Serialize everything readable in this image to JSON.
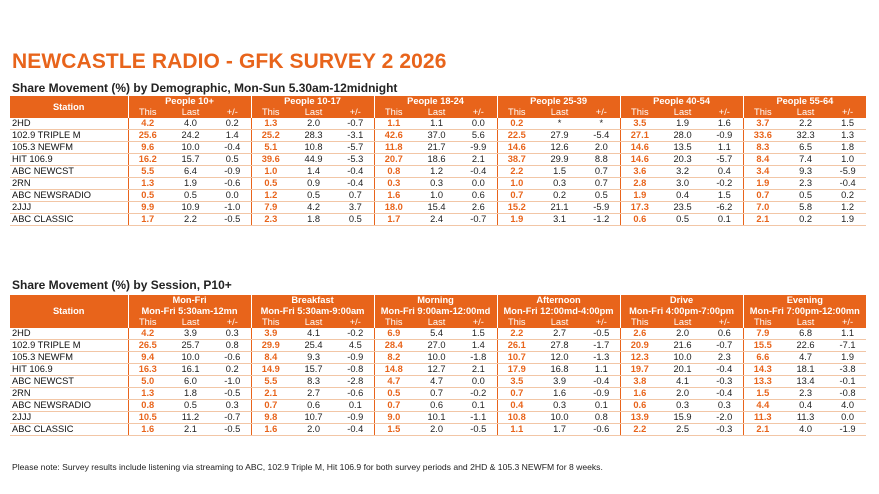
{
  "title": "NEWCASTLE RADIO - GFK SURVEY 2 2026",
  "demo": {
    "heading": "Share Movement (%) by Demographic, Mon-Sun 5.30am-12midnight",
    "station_label": "Station",
    "groups": [
      "People 10+",
      "People 10-17",
      "People 18-24",
      "People 25-39",
      "People 40-54",
      "People 55-64"
    ],
    "col_labels": [
      "This",
      "Last",
      "+/-"
    ],
    "rows": [
      {
        "name": "2HD",
        "values": [
          [
            "4.2",
            "4.0",
            "0.2"
          ],
          [
            "1.3",
            "2.0",
            "-0.7"
          ],
          [
            "1.1",
            "1.1",
            "0.0"
          ],
          [
            "0.2",
            "*",
            "*"
          ],
          [
            "3.5",
            "1.9",
            "1.6"
          ],
          [
            "3.7",
            "2.2",
            "1.5"
          ]
        ]
      },
      {
        "name": "102.9 TRIPLE M",
        "values": [
          [
            "25.6",
            "24.2",
            "1.4"
          ],
          [
            "25.2",
            "28.3",
            "-3.1"
          ],
          [
            "42.6",
            "37.0",
            "5.6"
          ],
          [
            "22.5",
            "27.9",
            "-5.4"
          ],
          [
            "27.1",
            "28.0",
            "-0.9"
          ],
          [
            "33.6",
            "32.3",
            "1.3"
          ]
        ]
      },
      {
        "name": "105.3 NEWFM",
        "values": [
          [
            "9.6",
            "10.0",
            "-0.4"
          ],
          [
            "5.1",
            "10.8",
            "-5.7"
          ],
          [
            "11.8",
            "21.7",
            "-9.9"
          ],
          [
            "14.6",
            "12.6",
            "2.0"
          ],
          [
            "14.6",
            "13.5",
            "1.1"
          ],
          [
            "8.3",
            "6.5",
            "1.8"
          ]
        ]
      },
      {
        "name": "HIT 106.9",
        "values": [
          [
            "16.2",
            "15.7",
            "0.5"
          ],
          [
            "39.6",
            "44.9",
            "-5.3"
          ],
          [
            "20.7",
            "18.6",
            "2.1"
          ],
          [
            "38.7",
            "29.9",
            "8.8"
          ],
          [
            "14.6",
            "20.3",
            "-5.7"
          ],
          [
            "8.4",
            "7.4",
            "1.0"
          ]
        ]
      },
      {
        "name": "ABC NEWCST",
        "values": [
          [
            "5.5",
            "6.4",
            "-0.9"
          ],
          [
            "1.0",
            "1.4",
            "-0.4"
          ],
          [
            "0.8",
            "1.2",
            "-0.4"
          ],
          [
            "2.2",
            "1.5",
            "0.7"
          ],
          [
            "3.6",
            "3.2",
            "0.4"
          ],
          [
            "3.4",
            "9.3",
            "-5.9"
          ]
        ]
      },
      {
        "name": "2RN",
        "values": [
          [
            "1.3",
            "1.9",
            "-0.6"
          ],
          [
            "0.5",
            "0.9",
            "-0.4"
          ],
          [
            "0.3",
            "0.3",
            "0.0"
          ],
          [
            "1.0",
            "0.3",
            "0.7"
          ],
          [
            "2.8",
            "3.0",
            "-0.2"
          ],
          [
            "1.9",
            "2.3",
            "-0.4"
          ]
        ]
      },
      {
        "name": "ABC NEWSRADIO",
        "values": [
          [
            "0.5",
            "0.5",
            "0.0"
          ],
          [
            "1.2",
            "0.5",
            "0.7"
          ],
          [
            "1.6",
            "1.0",
            "0.6"
          ],
          [
            "0.7",
            "0.2",
            "0.5"
          ],
          [
            "1.9",
            "0.4",
            "1.5"
          ],
          [
            "0.7",
            "0.5",
            "0.2"
          ]
        ]
      },
      {
        "name": "2JJJ",
        "values": [
          [
            "9.9",
            "10.9",
            "-1.0"
          ],
          [
            "7.9",
            "4.2",
            "3.7"
          ],
          [
            "18.0",
            "15.4",
            "2.6"
          ],
          [
            "15.2",
            "21.1",
            "-5.9"
          ],
          [
            "17.3",
            "23.5",
            "-6.2"
          ],
          [
            "7.0",
            "5.8",
            "1.2"
          ]
        ]
      },
      {
        "name": "ABC CLASSIC",
        "values": [
          [
            "1.7",
            "2.2",
            "-0.5"
          ],
          [
            "2.3",
            "1.8",
            "0.5"
          ],
          [
            "1.7",
            "2.4",
            "-0.7"
          ],
          [
            "1.9",
            "3.1",
            "-1.2"
          ],
          [
            "0.6",
            "0.5",
            "0.1"
          ],
          [
            "2.1",
            "0.2",
            "1.9"
          ]
        ]
      }
    ]
  },
  "session": {
    "heading": "Share Movement (%) by Session, P10+",
    "station_label": "Station",
    "groups": [
      "Mon-Fri",
      "Breakfast",
      "Morning",
      "Afternoon",
      "Drive",
      "Evening"
    ],
    "group_times": [
      "Mon-Fri 5:30am-12mn",
      "Mon-Fri 5:30am-9:00am",
      "Mon-Fri 9:00am-12:00md",
      "Mon-Fri 12:00md-4:00pm",
      "Mon-Fri 4:00pm-7:00pm",
      "Mon-Fri 7:00pm-12:00mn"
    ],
    "col_labels": [
      "This",
      "Last",
      "+/-"
    ],
    "rows": [
      {
        "name": "2HD",
        "values": [
          [
            "4.2",
            "3.9",
            "0.3"
          ],
          [
            "3.9",
            "4.1",
            "-0.2"
          ],
          [
            "6.9",
            "5.4",
            "1.5"
          ],
          [
            "2.2",
            "2.7",
            "-0.5"
          ],
          [
            "2.6",
            "2.0",
            "0.6"
          ],
          [
            "7.9",
            "6.8",
            "1.1"
          ]
        ]
      },
      {
        "name": "102.9 TRIPLE M",
        "values": [
          [
            "26.5",
            "25.7",
            "0.8"
          ],
          [
            "29.9",
            "25.4",
            "4.5"
          ],
          [
            "28.4",
            "27.0",
            "1.4"
          ],
          [
            "26.1",
            "27.8",
            "-1.7"
          ],
          [
            "20.9",
            "21.6",
            "-0.7"
          ],
          [
            "15.5",
            "22.6",
            "-7.1"
          ]
        ]
      },
      {
        "name": "105.3 NEWFM",
        "values": [
          [
            "9.4",
            "10.0",
            "-0.6"
          ],
          [
            "8.4",
            "9.3",
            "-0.9"
          ],
          [
            "8.2",
            "10.0",
            "-1.8"
          ],
          [
            "10.7",
            "12.0",
            "-1.3"
          ],
          [
            "12.3",
            "10.0",
            "2.3"
          ],
          [
            "6.6",
            "4.7",
            "1.9"
          ]
        ]
      },
      {
        "name": "HIT 106.9",
        "values": [
          [
            "16.3",
            "16.1",
            "0.2"
          ],
          [
            "14.9",
            "15.7",
            "-0.8"
          ],
          [
            "14.8",
            "12.7",
            "2.1"
          ],
          [
            "17.9",
            "16.8",
            "1.1"
          ],
          [
            "19.7",
            "20.1",
            "-0.4"
          ],
          [
            "14.3",
            "18.1",
            "-3.8"
          ]
        ]
      },
      {
        "name": "ABC NEWCST",
        "values": [
          [
            "5.0",
            "6.0",
            "-1.0"
          ],
          [
            "5.5",
            "8.3",
            "-2.8"
          ],
          [
            "4.7",
            "4.7",
            "0.0"
          ],
          [
            "3.5",
            "3.9",
            "-0.4"
          ],
          [
            "3.8",
            "4.1",
            "-0.3"
          ],
          [
            "13.3",
            "13.4",
            "-0.1"
          ]
        ]
      },
      {
        "name": "2RN",
        "values": [
          [
            "1.3",
            "1.8",
            "-0.5"
          ],
          [
            "2.1",
            "2.7",
            "-0.6"
          ],
          [
            "0.5",
            "0.7",
            "-0.2"
          ],
          [
            "0.7",
            "1.6",
            "-0.9"
          ],
          [
            "1.6",
            "2.0",
            "-0.4"
          ],
          [
            "1.5",
            "2.3",
            "-0.8"
          ]
        ]
      },
      {
        "name": "ABC NEWSRADIO",
        "values": [
          [
            "0.8",
            "0.5",
            "0.3"
          ],
          [
            "0.7",
            "0.6",
            "0.1"
          ],
          [
            "0.7",
            "0.6",
            "0.1"
          ],
          [
            "0.4",
            "0.3",
            "0.1"
          ],
          [
            "0.6",
            "0.3",
            "0.3"
          ],
          [
            "4.4",
            "0.4",
            "4.0"
          ]
        ]
      },
      {
        "name": "2JJJ",
        "values": [
          [
            "10.5",
            "11.2",
            "-0.7"
          ],
          [
            "9.8",
            "10.7",
            "-0.9"
          ],
          [
            "9.0",
            "10.1",
            "-1.1"
          ],
          [
            "10.8",
            "10.0",
            "0.8"
          ],
          [
            "13.9",
            "15.9",
            "-2.0"
          ],
          [
            "11.3",
            "11.3",
            "0.0"
          ]
        ]
      },
      {
        "name": "ABC CLASSIC",
        "values": [
          [
            "1.6",
            "2.1",
            "-0.5"
          ],
          [
            "1.6",
            "2.0",
            "-0.4"
          ],
          [
            "1.5",
            "2.0",
            "-0.5"
          ],
          [
            "1.1",
            "1.7",
            "-0.6"
          ],
          [
            "2.2",
            "2.5",
            "-0.3"
          ],
          [
            "2.1",
            "4.0",
            "-1.9"
          ]
        ]
      }
    ]
  },
  "footnote": "Please note: Survey results include listening via streaming to ABC, 102.9 Triple M, Hit 106.9 for both survey periods and 2HD & 105.3 NEWFM for 8 weeks."
}
